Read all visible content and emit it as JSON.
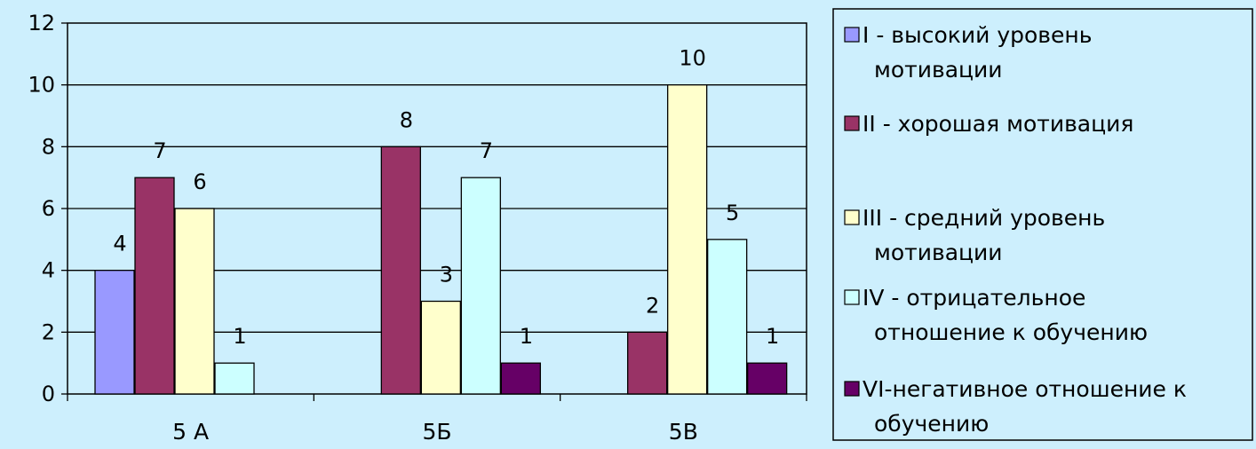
{
  "chart_data": {
    "type": "bar",
    "title": "",
    "xlabel": "",
    "ylabel": "",
    "categories": [
      "5 А",
      "5Б",
      "5В"
    ],
    "ylim": [
      0,
      12
    ],
    "yticks": [
      "0",
      "2",
      "4",
      "6",
      "8",
      "10",
      "12"
    ],
    "grid": true,
    "legend_position": "right",
    "series": [
      {
        "name": "I - высокий уровень мотивации",
        "legend_lines": [
          "I - высокий уровень",
          "мотивации"
        ],
        "color": "#9999ff",
        "values": [
          4,
          null,
          null
        ],
        "labels": [
          "4",
          "",
          ""
        ]
      },
      {
        "name": "II - хорошая мотивация",
        "legend_lines": [
          "II - хорошая мотивация"
        ],
        "color": "#993366",
        "values": [
          7,
          8,
          2
        ],
        "labels": [
          "7",
          "8",
          "2"
        ]
      },
      {
        "name": "III - средний уровень мотивации",
        "legend_lines": [
          "III - средний уровень",
          "мотивации"
        ],
        "color": "#ffffcc",
        "values": [
          6,
          3,
          10
        ],
        "labels": [
          "6",
          "3",
          "10"
        ]
      },
      {
        "name": "IV - отрицательное отношение к обучению",
        "legend_lines": [
          "IV - отрицательное",
          "отношение к обучению"
        ],
        "color": "#ccffff",
        "values": [
          1,
          7,
          5
        ],
        "labels": [
          "1",
          "7",
          "5"
        ]
      },
      {
        "name": "VI-негативное отношение к обучению",
        "legend_lines": [
          "VI-негативное отношение к",
          "обучению"
        ],
        "color": "#660066",
        "values": [
          null,
          1,
          1
        ],
        "labels": [
          "",
          "1",
          "1"
        ]
      }
    ]
  }
}
